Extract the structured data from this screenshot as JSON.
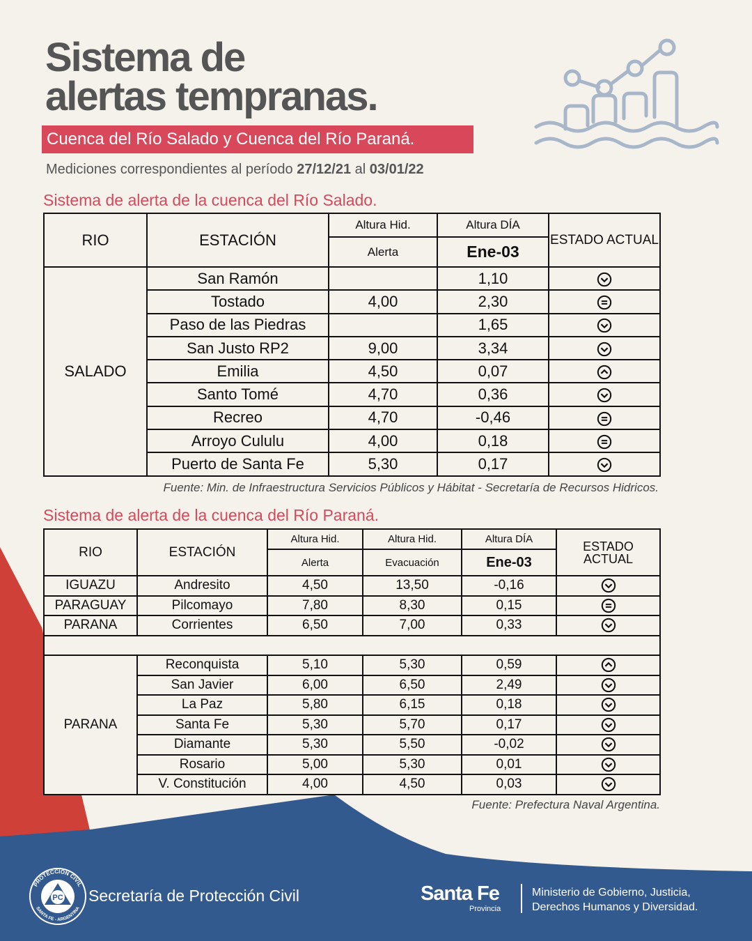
{
  "header": {
    "title_line1": "Sistema de",
    "title_line2": "alertas tempranas.",
    "subtitle": "Cuenca del Río Salado y Cuenca del Río Paraná.",
    "period_prefix": "Mediciones correspondientes al período",
    "period_from": "27/12/21",
    "period_joiner": "al",
    "period_to": "03/01/22"
  },
  "salado": {
    "title": "Sistema de alerta de la cuenca del Río Salado.",
    "headers": {
      "rio": "RIO",
      "station": "ESTACIÓN",
      "alt_hid": "Altura Hid.",
      "alerta": "Alerta",
      "alt_dia": "Altura DÍA",
      "date": "Ene-03",
      "estado": "ESTADO ACTUAL"
    },
    "rio": "SALADO",
    "rows": [
      {
        "station": "San Ramón",
        "altura": "1,10"
      },
      {
        "station": "Tostado",
        "alerta": "4,00",
        "altura": "2,30"
      },
      {
        "station": "Paso de las Piedras",
        "altura": "1,65"
      },
      {
        "station": "San Justo RP2",
        "alerta": "9,00",
        "altura": "3,34"
      },
      {
        "station": "Emilia",
        "alerta": "4,50",
        "altura": "0,07"
      },
      {
        "station": "Santo Tomé",
        "alerta": "4,70",
        "altura": "0,36"
      },
      {
        "station": "Recreo",
        "alerta": "4,70",
        "altura": "-0,46"
      },
      {
        "station": "Arroyo Cululu",
        "alerta": "4,00",
        "altura": "0,18"
      },
      {
        "station": "Puerto de Santa Fe",
        "alerta": "5,30",
        "altura": "0,17"
      }
    ],
    "source_label": "Fuente:",
    "source": "Min. de Infraestructura Servicios Públicos y Hábitat - Secretaría de Recursos Hidricos."
  },
  "parana": {
    "title": "Sistema de alerta de la cuenca del Río Paraná.",
    "headers": {
      "rio": "RIO",
      "station": "ESTACIÓN",
      "alt_hid_1": "Altura Hid.",
      "alerta": "Alerta",
      "alt_hid_2": "Altura Hid.",
      "evacuacion": "Evacuación",
      "alt_dia": "Altura DÍA",
      "date": "Ene-03",
      "estado": "ESTADO ACTUAL"
    },
    "rows_top": [
      {
        "rio": "IGUAZU",
        "station": "Andresito",
        "alerta": "4,50",
        "evacuacion": "13,50",
        "altura": "-0,16"
      },
      {
        "rio": "PARAGUAY",
        "station": "Pilcomayo",
        "alerta": "7,80",
        "evacuacion": "8,30",
        "altura": "0,15"
      },
      {
        "rio": "PARANA",
        "station": "Corrientes",
        "alerta": "6,50",
        "evacuacion": "7,00",
        "altura": "0,33"
      }
    ],
    "rio_bottom": "PARANA",
    "rows_bottom": [
      {
        "station": "Reconquista",
        "alerta": "5,10",
        "evacuacion": "5,30",
        "altura": "0,59"
      },
      {
        "station": "San Javier",
        "alerta": "6,00",
        "evacuacion": "6,50",
        "altura": "2,49"
      },
      {
        "station": "La Paz",
        "alerta": "5,80",
        "evacuacion": "6,15",
        "altura": "0,18"
      },
      {
        "station": "Santa Fe",
        "alerta": "5,30",
        "evacuacion": "5,70",
        "altura": "0,17"
      },
      {
        "station": "Diamante",
        "alerta": "5,30",
        "evacuacion": "5,50",
        "altura": "-0,02"
      },
      {
        "station": "Rosario",
        "alerta": "5,00",
        "evacuacion": "5,30",
        "altura": "0,01"
      },
      {
        "station": "V. Constitución",
        "alerta": "4,00",
        "evacuacion": "4,50",
        "altura": "0,03"
      }
    ],
    "source_label": "Fuente:",
    "source": "Prefectura Naval Argentina."
  },
  "footer": {
    "logo_top": "PROTECCIÓN CIVIL",
    "logo_bottom": "SANTA FE - ARGENTINA",
    "logo_mark": "PC",
    "secretaria": "Secretaría de Protección Civil",
    "brand": "Santa Fe",
    "brand_sub": "Provincia",
    "ministry_line1": "Ministerio de Gobierno, Justicia,",
    "ministry_line2": "Derechos Humanos y Diversidad."
  }
}
